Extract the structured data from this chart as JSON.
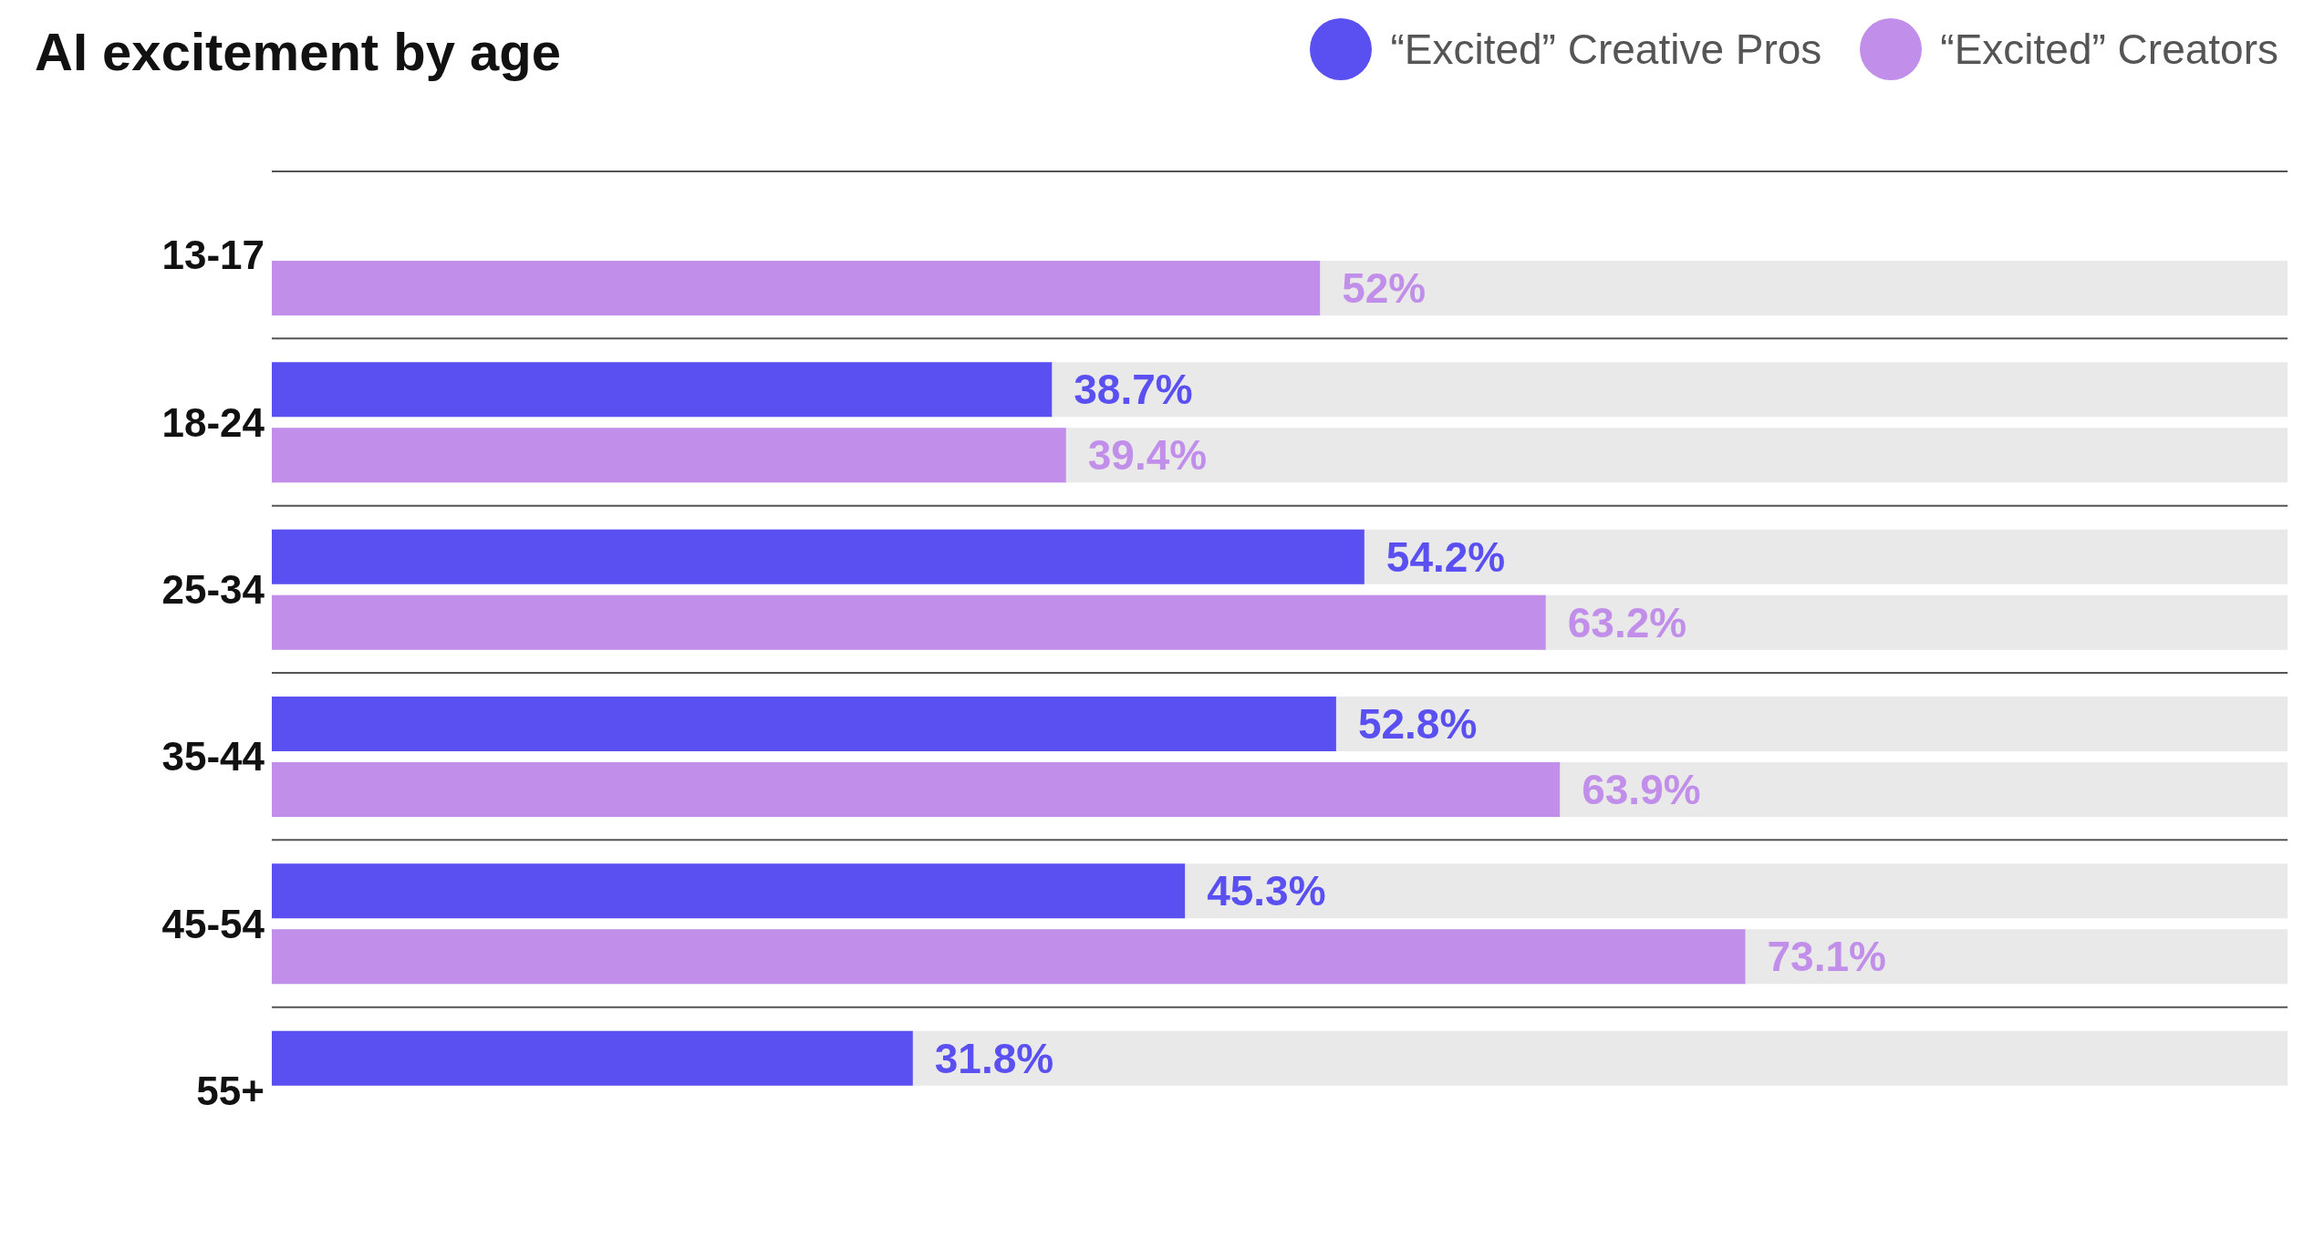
{
  "chart_data": {
    "type": "bar",
    "orientation": "horizontal",
    "title": "AI excitement by age",
    "categories": [
      "13-17",
      "18-24",
      "25-34",
      "35-44",
      "45-54",
      "55+"
    ],
    "series": [
      {
        "name": "“Excited” Creative Pros",
        "color": "#5a4ff0",
        "values": [
          null,
          38.7,
          54.2,
          52.8,
          45.3,
          31.8
        ],
        "value_labels": [
          null,
          "38.7%",
          "54.2%",
          "52.8%",
          "45.3%",
          "31.8%"
        ]
      },
      {
        "name": "“Excited” Creators",
        "color": "#c18fea",
        "values": [
          52,
          39.4,
          63.2,
          63.9,
          73.1,
          null
        ],
        "value_labels": [
          "52%",
          "39.4%",
          "63.2%",
          "63.9%",
          "73.1%",
          null
        ]
      }
    ],
    "xlim": [
      0,
      100
    ],
    "tick_labels": false,
    "grid": "y",
    "legend": "top right"
  }
}
